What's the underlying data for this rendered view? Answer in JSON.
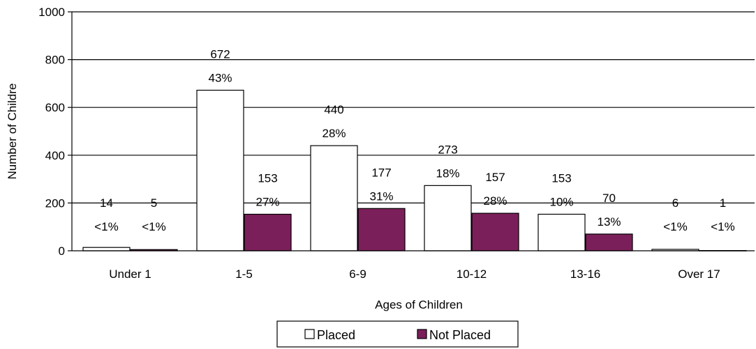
{
  "chart_data": {
    "type": "bar",
    "title": "",
    "xlabel": "Ages of Children",
    "ylabel": "Number of Childre",
    "ylim": [
      0,
      1000
    ],
    "yticks": [
      0,
      200,
      400,
      600,
      800,
      1000
    ],
    "grid": true,
    "legend_placement": "bottom",
    "categories": [
      "Under 1",
      "1-5",
      "6-9",
      "10-12",
      "13-16",
      "Over 17"
    ],
    "series": [
      {
        "name": "Placed",
        "color": "#ffffff",
        "values": [
          14,
          672,
          440,
          273,
          153,
          6
        ],
        "percent_labels": [
          "<1%",
          "43%",
          "28%",
          "18%",
          "10%",
          "<1%"
        ]
      },
      {
        "name": "Not Placed",
        "color": "#7b1f5a",
        "values": [
          5,
          153,
          177,
          157,
          70,
          1
        ],
        "percent_labels": [
          "<1%",
          "27%",
          "31%",
          "28%",
          "13%",
          "<1%"
        ]
      }
    ]
  }
}
